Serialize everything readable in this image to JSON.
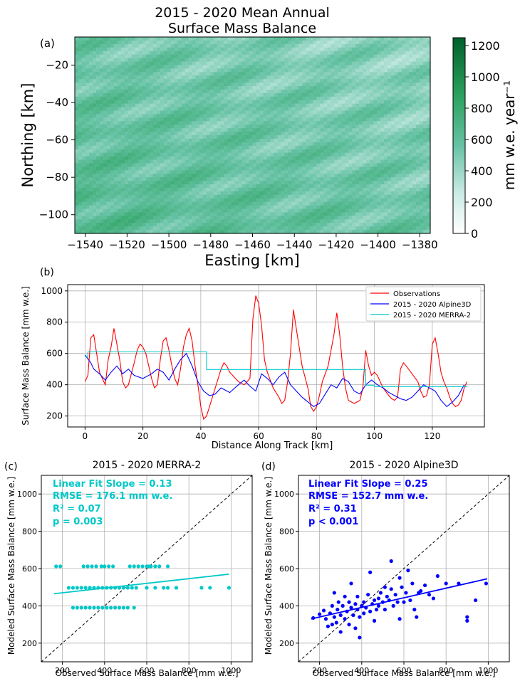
{
  "colors": {
    "obs": "#ff0000",
    "alpine3d": "#0000ff",
    "merra2": "#00c8c8",
    "cmap_low": "#ffffff",
    "cmap_high": "#00602a",
    "grid": "#b0b0b0"
  },
  "chart_data": [
    {
      "id": "a",
      "panel_label": "(a)",
      "type": "heatmap",
      "title": "2015 - 2020 Mean Annual\nSurface Mass Balance",
      "xlabel": "Easting [km]",
      "ylabel": "Northing [km]",
      "xlim": [
        -1545,
        -1375
      ],
      "ylim": [
        -110,
        -5
      ],
      "xticks": [
        -1540,
        -1520,
        -1500,
        -1480,
        -1460,
        -1440,
        -1420,
        -1400,
        -1380
      ],
      "yticks": [
        -20,
        -40,
        -60,
        -80,
        -100
      ],
      "colorbar": {
        "label": "mm w.e. year⁻¹",
        "range": [
          0,
          1250
        ],
        "ticks": [
          0,
          200,
          400,
          600,
          800,
          1000,
          1200
        ]
      },
      "typical_range": [
        250,
        700
      ]
    },
    {
      "id": "b",
      "panel_label": "(b)",
      "type": "line",
      "xlabel": "Distance Along Track [km]",
      "ylabel": "Surface Mass Balance [mm w.e.]",
      "xlim": [
        -6,
        138
      ],
      "ylim": [
        130,
        1040
      ],
      "xticks": [
        0,
        20,
        40,
        60,
        80,
        100,
        120
      ],
      "yticks": [
        200,
        400,
        600,
        800,
        1000
      ],
      "grid": true,
      "legend_position": "top-right",
      "series": [
        {
          "name": "Observations",
          "color_key": "obs",
          "x": [
            0,
            1,
            2,
            3,
            5,
            7,
            8,
            9,
            10,
            12,
            13,
            14,
            15,
            17,
            18,
            19,
            20,
            21,
            22,
            23,
            24,
            25,
            26,
            27,
            28,
            29,
            30,
            31,
            32,
            33,
            34,
            35,
            36,
            37,
            38,
            39,
            40,
            41,
            42,
            43,
            45,
            47,
            48,
            49,
            50,
            51,
            52,
            53,
            55,
            57,
            58,
            59,
            60,
            61,
            62,
            63,
            65,
            67,
            68,
            69,
            70,
            71,
            72,
            73,
            75,
            77,
            78,
            79,
            80,
            81,
            82,
            84,
            86,
            87,
            88,
            89,
            90,
            91,
            93,
            95,
            96,
            97,
            98,
            99,
            100,
            101,
            103,
            105,
            106,
            107,
            108,
            109,
            110,
            111,
            113,
            115,
            116,
            117,
            118,
            119,
            120,
            121,
            122,
            123,
            124,
            125,
            126,
            127,
            128,
            129,
            130,
            131,
            132
          ],
          "y": [
            420,
            460,
            700,
            720,
            480,
            400,
            560,
            640,
            760,
            560,
            420,
            380,
            400,
            540,
            620,
            660,
            640,
            600,
            520,
            440,
            380,
            400,
            560,
            680,
            700,
            620,
            520,
            440,
            400,
            500,
            640,
            720,
            760,
            680,
            520,
            400,
            260,
            180,
            200,
            260,
            380,
            500,
            540,
            520,
            480,
            460,
            440,
            420,
            400,
            440,
            820,
            970,
            920,
            780,
            560,
            480,
            380,
            320,
            280,
            300,
            420,
            600,
            880,
            760,
            520,
            380,
            260,
            230,
            260,
            330,
            420,
            520,
            720,
            860,
            720,
            520,
            380,
            300,
            280,
            300,
            380,
            620,
            520,
            460,
            480,
            460,
            380,
            330,
            310,
            300,
            320,
            500,
            540,
            520,
            470,
            420,
            360,
            320,
            330,
            400,
            660,
            700,
            600,
            480,
            420,
            380,
            320,
            280,
            260,
            270,
            300,
            380,
            420
          ]
        },
        {
          "name": "2015 - 2020 Alpine3D",
          "color_key": "alpine3d",
          "x": [
            0,
            2,
            3,
            5,
            7,
            9,
            11,
            13,
            15,
            17,
            20,
            23,
            25,
            27,
            29,
            31,
            33,
            35,
            37,
            39,
            41,
            43,
            45,
            47,
            50,
            53,
            55,
            57,
            59,
            61,
            63,
            65,
            67,
            69,
            71,
            73,
            75,
            77,
            79,
            81,
            83,
            85,
            87,
            89,
            91,
            93,
            95,
            97,
            99,
            101,
            103,
            105,
            107,
            109,
            111,
            113,
            115,
            117,
            119,
            121,
            123,
            125,
            127,
            129,
            131
          ],
          "y": [
            590,
            540,
            500,
            470,
            430,
            480,
            520,
            470,
            500,
            460,
            440,
            470,
            500,
            480,
            430,
            500,
            560,
            600,
            520,
            420,
            360,
            330,
            340,
            380,
            350,
            400,
            430,
            390,
            360,
            470,
            440,
            400,
            450,
            480,
            400,
            360,
            320,
            290,
            260,
            280,
            340,
            400,
            380,
            440,
            420,
            360,
            340,
            400,
            430,
            400,
            380,
            350,
            330,
            310,
            300,
            320,
            360,
            400,
            380,
            360,
            300,
            260,
            290,
            330,
            400
          ]
        },
        {
          "name": "2015 - 2020 MERRA-2",
          "color_key": "merra2",
          "x": [
            0,
            1,
            1,
            42,
            42,
            97,
            97,
            100,
            100,
            132
          ],
          "y": [
            580,
            580,
            610,
            610,
            497,
            497,
            397,
            397,
            387,
            387
          ]
        }
      ]
    },
    {
      "id": "c",
      "panel_label": "(c)",
      "type": "scatter",
      "title": "2015 - 2020 MERRA-2",
      "xlabel": "Observed Surface Mass Balance [mm w.e.]",
      "ylabel": "Modeled Surface Mass Balance [mm w.e.]",
      "xlim": [
        100,
        1100
      ],
      "ylim": [
        100,
        1100
      ],
      "xticks": [
        200,
        400,
        600,
        800,
        1000
      ],
      "yticks": [
        200,
        400,
        600,
        800,
        1000
      ],
      "grid": true,
      "color_key": "merra2",
      "stats": [
        "Linear Fit Slope = 0.13",
        "RMSE = 176.1 mm w.e.",
        "R² = 0.07",
        "p = 0.003"
      ],
      "fit": {
        "x": [
          160,
          990
        ],
        "y": [
          465,
          570
        ]
      },
      "points": [
        [
          170,
          612
        ],
        [
          190,
          612
        ],
        [
          300,
          612
        ],
        [
          320,
          612
        ],
        [
          340,
          612
        ],
        [
          360,
          612
        ],
        [
          385,
          612
        ],
        [
          400,
          612
        ],
        [
          420,
          612
        ],
        [
          440,
          612
        ],
        [
          520,
          612
        ],
        [
          540,
          612
        ],
        [
          560,
          612
        ],
        [
          580,
          612
        ],
        [
          600,
          612
        ],
        [
          610,
          612
        ],
        [
          620,
          612
        ],
        [
          640,
          612
        ],
        [
          660,
          612
        ],
        [
          700,
          612
        ],
        [
          230,
          497
        ],
        [
          250,
          497
        ],
        [
          270,
          497
        ],
        [
          290,
          497
        ],
        [
          310,
          497
        ],
        [
          330,
          497
        ],
        [
          350,
          497
        ],
        [
          370,
          497
        ],
        [
          390,
          497
        ],
        [
          410,
          497
        ],
        [
          430,
          497
        ],
        [
          450,
          497
        ],
        [
          470,
          497
        ],
        [
          490,
          497
        ],
        [
          510,
          497
        ],
        [
          530,
          497
        ],
        [
          550,
          497
        ],
        [
          600,
          497
        ],
        [
          640,
          497
        ],
        [
          680,
          497
        ],
        [
          700,
          497
        ],
        [
          740,
          497
        ],
        [
          860,
          497
        ],
        [
          900,
          497
        ],
        [
          990,
          497
        ],
        [
          250,
          390
        ],
        [
          270,
          390
        ],
        [
          290,
          390
        ],
        [
          310,
          390
        ],
        [
          330,
          390
        ],
        [
          350,
          390
        ],
        [
          370,
          390
        ],
        [
          390,
          390
        ],
        [
          410,
          390
        ],
        [
          430,
          390
        ],
        [
          450,
          390
        ],
        [
          470,
          390
        ],
        [
          490,
          390
        ],
        [
          510,
          390
        ],
        [
          540,
          390
        ]
      ]
    },
    {
      "id": "d",
      "panel_label": "(d)",
      "type": "scatter",
      "title": "2015 - 2020 Alpine3D",
      "xlabel": "Observed Surface Mass Balance [mm w.e.]",
      "ylabel": "Modeled Surface Mass Balance [mm w.e.]",
      "xlim": [
        100,
        1100
      ],
      "ylim": [
        100,
        1100
      ],
      "xticks": [
        200,
        400,
        600,
        800,
        1000
      ],
      "yticks": [
        200,
        400,
        600,
        800,
        1000
      ],
      "grid": true,
      "color_key": "alpine3d",
      "stats": [
        "Linear Fit Slope = 0.25",
        "RMSE = 152.7 mm w.e.",
        "R² = 0.31",
        "p < 0.001"
      ],
      "fit": {
        "x": [
          160,
          995
        ],
        "y": [
          330,
          545
        ]
      },
      "points": [
        [
          170,
          335
        ],
        [
          200,
          355
        ],
        [
          220,
          375
        ],
        [
          230,
          330
        ],
        [
          240,
          290
        ],
        [
          250,
          360
        ],
        [
          260,
          300
        ],
        [
          260,
          400
        ],
        [
          270,
          340
        ],
        [
          270,
          470
        ],
        [
          280,
          310
        ],
        [
          285,
          380
        ],
        [
          290,
          420
        ],
        [
          300,
          350
        ],
        [
          300,
          260
        ],
        [
          310,
          400
        ],
        [
          320,
          330
        ],
        [
          320,
          450
        ],
        [
          330,
          370
        ],
        [
          340,
          300
        ],
        [
          340,
          420
        ],
        [
          350,
          390
        ],
        [
          350,
          520
        ],
        [
          360,
          350
        ],
        [
          370,
          410
        ],
        [
          370,
          280
        ],
        [
          380,
          380
        ],
        [
          380,
          450
        ],
        [
          390,
          340
        ],
        [
          390,
          230
        ],
        [
          400,
          400
        ],
        [
          410,
          420
        ],
        [
          410,
          360
        ],
        [
          420,
          390
        ],
        [
          430,
          460
        ],
        [
          440,
          370
        ],
        [
          440,
          580
        ],
        [
          450,
          410
        ],
        [
          460,
          430
        ],
        [
          460,
          320
        ],
        [
          470,
          380
        ],
        [
          480,
          440
        ],
        [
          480,
          400
        ],
        [
          490,
          470
        ],
        [
          500,
          420
        ],
        [
          510,
          380
        ],
        [
          510,
          500
        ],
        [
          520,
          450
        ],
        [
          530,
          430
        ],
        [
          540,
          490
        ],
        [
          540,
          640
        ],
        [
          550,
          400
        ],
        [
          560,
          460
        ],
        [
          570,
          420
        ],
        [
          580,
          550
        ],
        [
          580,
          330
        ],
        [
          590,
          500
        ],
        [
          600,
          420
        ],
        [
          610,
          470
        ],
        [
          620,
          590
        ],
        [
          630,
          430
        ],
        [
          640,
          520
        ],
        [
          650,
          380
        ],
        [
          660,
          340
        ],
        [
          670,
          470
        ],
        [
          680,
          480
        ],
        [
          700,
          510
        ],
        [
          720,
          460
        ],
        [
          740,
          440
        ],
        [
          760,
          560
        ],
        [
          800,
          520
        ],
        [
          860,
          520
        ],
        [
          900,
          340
        ],
        [
          900,
          320
        ],
        [
          940,
          430
        ],
        [
          990,
          520
        ]
      ]
    }
  ]
}
